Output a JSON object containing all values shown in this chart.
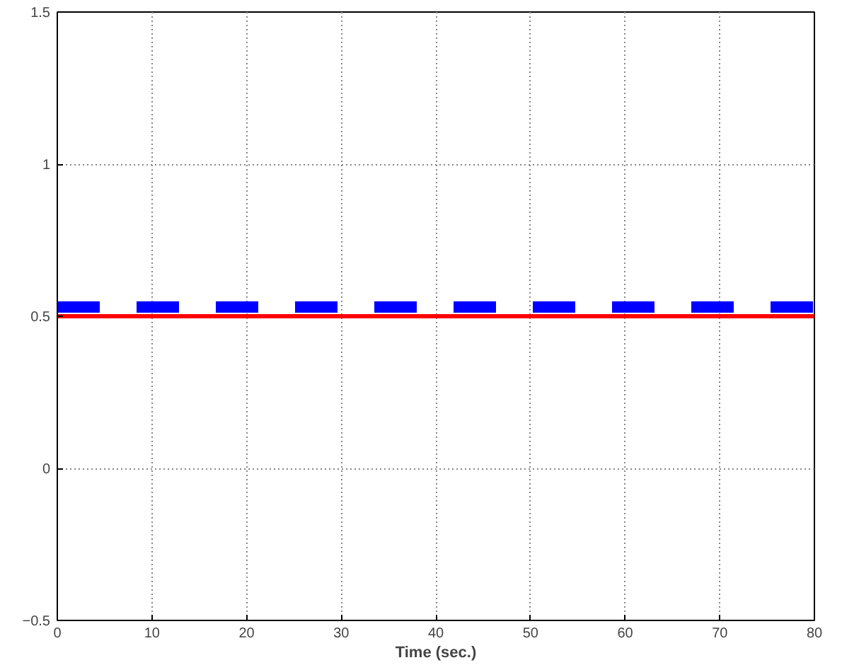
{
  "chart_data": {
    "type": "line",
    "xlabel": "Time (sec.)",
    "x": [
      0,
      80
    ],
    "series": [
      {
        "color": "#0000ff",
        "values": [
          0.53,
          0.53
        ],
        "line_style": "dashed"
      },
      {
        "color": "#ff0000",
        "values": [
          0.5,
          0.5
        ],
        "line_style": "solid"
      }
    ],
    "xlim": [
      0,
      80
    ],
    "ylim": [
      -0.5,
      1.5
    ],
    "xticks": [
      0,
      10,
      20,
      30,
      40,
      50,
      60,
      70,
      80
    ],
    "yticks": [
      -0.5,
      0,
      0.5,
      1,
      1.5
    ],
    "grid": true
  }
}
